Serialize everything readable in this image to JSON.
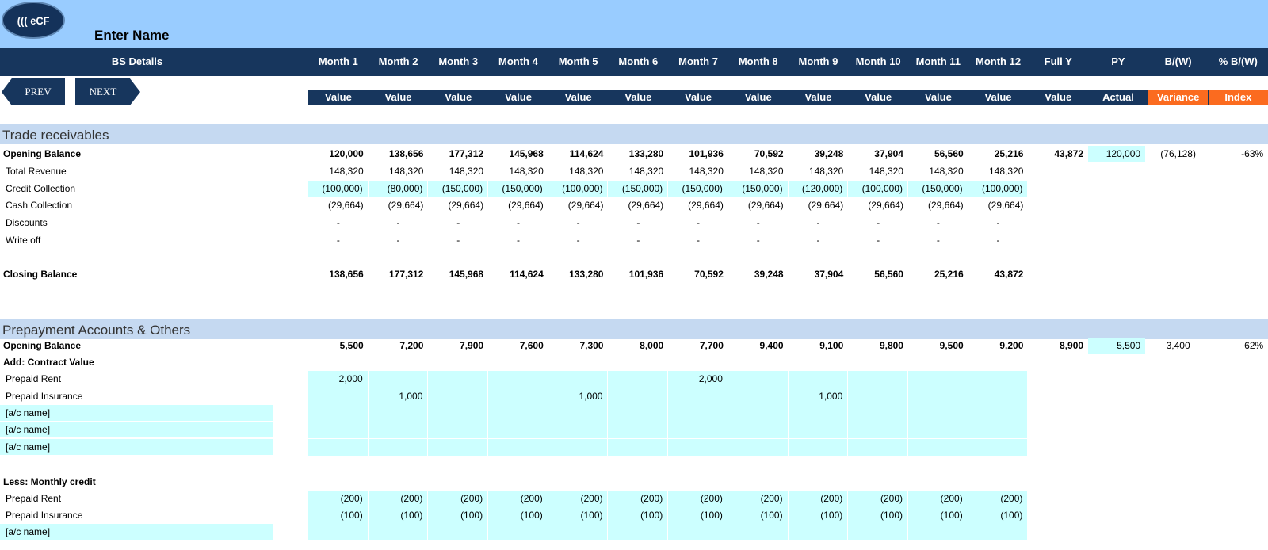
{
  "app": {
    "logo": "((( eCF",
    "name": "Enter Name"
  },
  "nav": {
    "prev": "PREV",
    "next": "NEXT"
  },
  "header": {
    "row_label": "BS Details",
    "columns": [
      "Month 1",
      "Month 2",
      "Month 3",
      "Month 4",
      "Month 5",
      "Month 6",
      "Month 7",
      "Month 8",
      "Month 9",
      "Month 10",
      "Month 11",
      "Month 12",
      "Full Y",
      "PY",
      "B/(W)",
      "% B/(W)"
    ],
    "sub": [
      "Value",
      "Value",
      "Value",
      "Value",
      "Value",
      "Value",
      "Value",
      "Value",
      "Value",
      "Value",
      "Value",
      "Value",
      "Value",
      "Actual",
      "Variance",
      "Index"
    ]
  },
  "colors": {
    "title_bar": "#99ccff",
    "header": "#17365d",
    "section": "#c5d9f1",
    "input_cell": "#ccffff",
    "variance_accent": "#fb6b1f"
  },
  "trade": {
    "title": "Trade receivables",
    "opening": {
      "label": "Opening Balance",
      "values": [
        "120,000",
        "138,656",
        "177,312",
        "145,968",
        "114,624",
        "133,280",
        "101,936",
        "70,592",
        "39,248",
        "37,904",
        "56,560",
        "25,216"
      ],
      "fully": "43,872",
      "py": "120,000",
      "bw": "(76,128)",
      "pct": "-63%"
    },
    "rows": [
      {
        "label": "Total Revenue",
        "values": [
          "148,320",
          "148,320",
          "148,320",
          "148,320",
          "148,320",
          "148,320",
          "148,320",
          "148,320",
          "148,320",
          "148,320",
          "148,320",
          "148,320"
        ]
      },
      {
        "label": "Credit Collection",
        "values": [
          "(100,000)",
          "(80,000)",
          "(150,000)",
          "(150,000)",
          "(100,000)",
          "(150,000)",
          "(150,000)",
          "(150,000)",
          "(120,000)",
          "(100,000)",
          "(150,000)",
          "(100,000)"
        ]
      },
      {
        "label": "Cash Collection",
        "values": [
          "(29,664)",
          "(29,664)",
          "(29,664)",
          "(29,664)",
          "(29,664)",
          "(29,664)",
          "(29,664)",
          "(29,664)",
          "(29,664)",
          "(29,664)",
          "(29,664)",
          "(29,664)"
        ]
      },
      {
        "label": "Discounts",
        "values": [
          "-",
          "-",
          "-",
          "-",
          "-",
          "-",
          "-",
          "-",
          "-",
          "-",
          "-",
          "-"
        ]
      },
      {
        "label": "Write off",
        "values": [
          "-",
          "-",
          "-",
          "-",
          "-",
          "-",
          "-",
          "-",
          "-",
          "-",
          "-",
          "-"
        ]
      }
    ],
    "closing": {
      "label": "Closing Balance",
      "values": [
        "138,656",
        "177,312",
        "145,968",
        "114,624",
        "133,280",
        "101,936",
        "70,592",
        "39,248",
        "37,904",
        "56,560",
        "25,216",
        "43,872"
      ]
    }
  },
  "prepay": {
    "title": "Prepayment Accounts & Others",
    "opening": {
      "label": "Opening Balance",
      "values": [
        "5,500",
        "7,200",
        "7,900",
        "7,600",
        "7,300",
        "8,000",
        "7,700",
        "9,400",
        "9,100",
        "9,800",
        "9,500",
        "9,200"
      ],
      "fully": "8,900",
      "py": "5,500",
      "bw": "3,400",
      "pct": "62%"
    },
    "add_label": "Add: Contract Value",
    "add_rows": [
      {
        "label": "Prepaid Rent",
        "values": [
          "2,000",
          "",
          "",
          "",
          "",
          "",
          "2,000",
          "",
          "",
          "",
          "",
          ""
        ]
      },
      {
        "label": "Prepaid Insurance",
        "values": [
          "",
          "1,000",
          "",
          "",
          "1,000",
          "",
          "",
          "",
          "1,000",
          "",
          "",
          ""
        ]
      },
      {
        "label": "[a/c name]",
        "values": [
          "",
          "",
          "",
          "",
          "",
          "",
          "",
          "",
          "",
          "",
          "",
          ""
        ]
      },
      {
        "label": "[a/c name]",
        "values": [
          "",
          "",
          "",
          "",
          "",
          "",
          "",
          "",
          "",
          "",
          "",
          ""
        ]
      },
      {
        "label": "[a/c name]",
        "values": [
          "",
          "",
          "",
          "",
          "",
          "",
          "",
          "",
          "",
          "",
          "",
          ""
        ]
      }
    ],
    "less_label": "Less: Monthly credit",
    "less_rows": [
      {
        "label": "Prepaid Rent",
        "values": [
          "(200)",
          "(200)",
          "(200)",
          "(200)",
          "(200)",
          "(200)",
          "(200)",
          "(200)",
          "(200)",
          "(200)",
          "(200)",
          "(200)"
        ]
      },
      {
        "label": "Prepaid Insurance",
        "values": [
          "(100)",
          "(100)",
          "(100)",
          "(100)",
          "(100)",
          "(100)",
          "(100)",
          "(100)",
          "(100)",
          "(100)",
          "(100)",
          "(100)"
        ]
      },
      {
        "label": "[a/c name]",
        "values": [
          "",
          "",
          "",
          "",
          "",
          "",
          "",
          "",
          "",
          "",
          "",
          ""
        ]
      }
    ]
  }
}
